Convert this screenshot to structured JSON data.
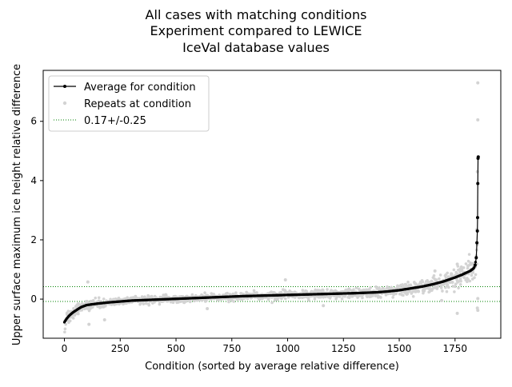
{
  "chart_data": {
    "type": "scatter",
    "title_lines": [
      "All cases with matching conditions",
      "Experiment compared to LEWICE",
      "IceVal database values"
    ],
    "xlabel": "Condition (sorted by average relative difference)",
    "ylabel": "Upper surface maximum ice height relative difference",
    "xlim": [
      -95,
      1955
    ],
    "ylim": [
      -1.32,
      7.72
    ],
    "xticks": [
      0,
      250,
      500,
      750,
      1000,
      1250,
      1500,
      1750
    ],
    "yticks": [
      0,
      2,
      4,
      6
    ],
    "grid": false,
    "legend_position": "upper-left",
    "legend": [
      {
        "label": "Average for condition",
        "kind": "line-marker",
        "color": "#000000"
      },
      {
        "label": "Repeats at condition",
        "kind": "marker",
        "color": "#d3d3d3"
      },
      {
        "label": "0.17+/-0.25",
        "kind": "dotted-line",
        "color": "#008000"
      }
    ],
    "series": [
      {
        "name": "Average for condition",
        "color": "#000000",
        "n_points": 1855,
        "x": [
          0,
          5,
          10,
          20,
          30,
          40,
          50,
          60,
          75,
          100,
          150,
          200,
          250,
          300,
          400,
          500,
          600,
          700,
          800,
          900,
          1000,
          1100,
          1200,
          1300,
          1400,
          1450,
          1500,
          1550,
          1600,
          1650,
          1700,
          1750,
          1780,
          1800,
          1820,
          1835,
          1840,
          1845,
          1848,
          1850,
          1851,
          1852,
          1853,
          1854
        ],
        "y": [
          -0.78,
          -0.72,
          -0.66,
          -0.57,
          -0.5,
          -0.44,
          -0.39,
          -0.34,
          -0.27,
          -0.2,
          -0.15,
          -0.11,
          -0.08,
          -0.05,
          -0.02,
          0.01,
          0.04,
          0.07,
          0.1,
          0.12,
          0.14,
          0.16,
          0.18,
          0.2,
          0.23,
          0.26,
          0.3,
          0.36,
          0.42,
          0.5,
          0.6,
          0.73,
          0.82,
          0.89,
          0.96,
          1.05,
          1.15,
          1.4,
          1.9,
          2.3,
          2.75,
          3.9,
          4.75,
          4.8
        ]
      },
      {
        "name": "Repeats at condition",
        "color": "#d3d3d3",
        "spread_model": "gaussian scatter around the condition average (seeded); outliers listed",
        "spread_sd": [
          0.12,
          0.07,
          0.06,
          0.07,
          0.1,
          0.14,
          0.18
        ],
        "spread_sd_at_x": [
          0,
          200,
          700,
          1300,
          1500,
          1650,
          1780
        ],
        "outliers": [
          {
            "x": 1852,
            "y": 7.3
          },
          {
            "x": 1852,
            "y": 6.05
          },
          {
            "x": 1850,
            "y": 4.3
          },
          {
            "x": 1848,
            "y": 2.35
          },
          {
            "x": 1850,
            "y": -0.3
          },
          {
            "x": 1852,
            "y": -0.38
          },
          {
            "x": 1852,
            "y": 0.02
          },
          {
            "x": 1760,
            "y": -0.48
          },
          {
            "x": 1808,
            "y": 1.12
          },
          {
            "x": 1760,
            "y": 1.18
          },
          {
            "x": 1780,
            "y": 1.0
          },
          {
            "x": 990,
            "y": 0.65
          },
          {
            "x": 105,
            "y": 0.58
          },
          {
            "x": 110,
            "y": -0.85
          },
          {
            "x": 180,
            "y": -0.7
          },
          {
            "x": 640,
            "y": -0.32
          },
          {
            "x": 1160,
            "y": -0.22
          },
          {
            "x": 1660,
            "y": 0.95
          },
          {
            "x": 1720,
            "y": 0.75
          },
          {
            "x": 1690,
            "y": -0.05
          }
        ]
      }
    ],
    "reference_band": {
      "label": "0.17+/-0.25",
      "center": 0.17,
      "half_width": 0.25,
      "lines_y": [
        -0.08,
        0.42
      ],
      "color": "#008000",
      "style": "dotted"
    }
  }
}
